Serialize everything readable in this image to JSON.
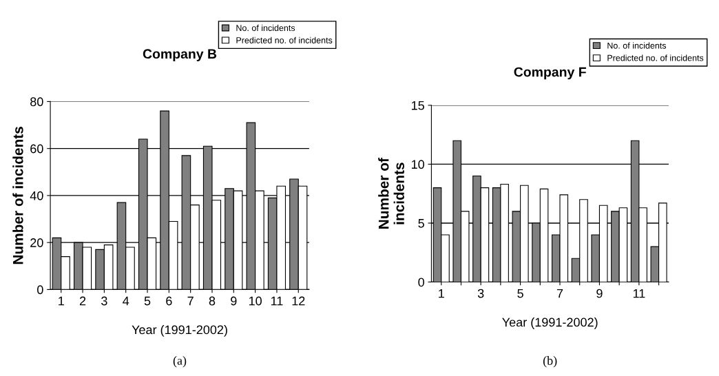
{
  "chart_data": [
    {
      "type": "bar",
      "title": "Company B",
      "xlabel": "Year (1991-2002)",
      "ylabel": "Number of incidents",
      "categories": [
        "1",
        "2",
        "3",
        "4",
        "5",
        "6",
        "7",
        "8",
        "9",
        "10",
        "11",
        "12"
      ],
      "series": [
        {
          "name": "No. of incidents",
          "color": "#808080",
          "values": [
            22,
            20,
            17,
            37,
            64,
            76,
            57,
            61,
            43,
            71,
            39,
            47
          ]
        },
        {
          "name": "Predicted no. of incidents",
          "color": "#ffffff",
          "values": [
            14,
            18,
            19,
            18,
            22,
            29,
            36,
            38,
            42,
            42,
            44,
            44
          ]
        }
      ],
      "ylim": [
        0,
        80
      ],
      "yticks": [
        0,
        20,
        40,
        60,
        80
      ],
      "grid": "y",
      "legend": "top right",
      "annotations": [
        "(a)"
      ]
    },
    {
      "type": "bar",
      "title": "Company F",
      "xlabel": "Year (1991-2002)",
      "ylabel": "Number of\nincidents",
      "categories": [
        "1",
        null,
        "3",
        null,
        "5",
        null,
        "7",
        null,
        "9",
        null,
        "11",
        null
      ],
      "series": [
        {
          "name": "No. of incidents",
          "color": "#808080",
          "values": [
            8,
            12,
            9,
            8,
            6,
            5,
            4,
            2,
            4,
            6,
            12,
            3
          ]
        },
        {
          "name": "Predicted no. of incidents",
          "color": "#ffffff",
          "values": [
            4,
            6,
            8,
            8.3,
            8.2,
            7.9,
            7.4,
            7.0,
            6.5,
            6.3,
            6.3,
            6.7
          ]
        }
      ],
      "ylim": [
        0,
        15
      ],
      "yticks": [
        0,
        5,
        10,
        15
      ],
      "grid": "y",
      "legend": "top right",
      "annotations": [
        "(b)"
      ]
    }
  ]
}
